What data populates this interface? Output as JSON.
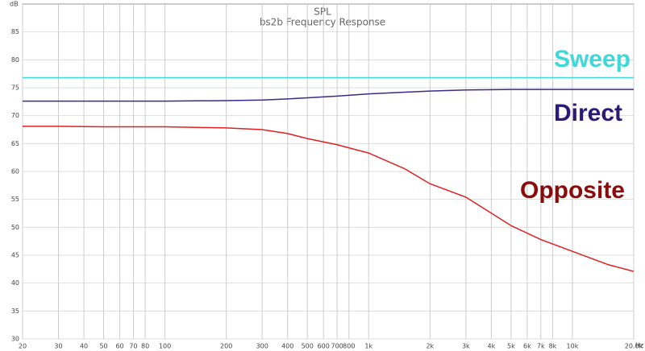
{
  "chart_data": {
    "type": "line",
    "title": "SPL",
    "subtitle": "bs2b Frequency Response",
    "ylabel": "dB",
    "xlabel": "Hz",
    "xscale": "log",
    "grid": true,
    "xlim": [
      20,
      20000
    ],
    "ylim": [
      30,
      90
    ],
    "yticks": [
      30,
      35,
      40,
      45,
      50,
      55,
      60,
      65,
      70,
      75,
      80,
      85
    ],
    "xticks": [
      20,
      30,
      40,
      50,
      60,
      70,
      80,
      100,
      200,
      300,
      400,
      500,
      600,
      700,
      800,
      {
        "value": 1000,
        "label": "1k"
      },
      {
        "value": 2000,
        "label": "2k"
      },
      {
        "value": 3000,
        "label": "3k"
      },
      {
        "value": 4000,
        "label": "4k"
      },
      {
        "value": 5000,
        "label": "5k"
      },
      {
        "value": 6000,
        "label": "6k"
      },
      {
        "value": 7000,
        "label": "7k"
      },
      {
        "value": 8000,
        "label": "8k"
      },
      {
        "value": 10000,
        "label": "10k"
      },
      {
        "value": 20000,
        "label": "20.0k"
      }
    ],
    "x": [
      20,
      30,
      50,
      100,
      200,
      300,
      400,
      500,
      700,
      1000,
      1500,
      2000,
      3000,
      5000,
      7000,
      10000,
      15000,
      20000
    ],
    "series": [
      {
        "name": "Sweep",
        "color": "#3fd8d8",
        "values": [
          76.8,
          76.8,
          76.8,
          76.8,
          76.8,
          76.8,
          76.8,
          76.8,
          76.8,
          76.8,
          76.8,
          76.8,
          76.8,
          76.8,
          76.8,
          76.8,
          76.8,
          76.8
        ]
      },
      {
        "name": "Direct",
        "color": "#3a2a88",
        "values": [
          72.6,
          72.6,
          72.6,
          72.6,
          72.7,
          72.8,
          73.0,
          73.2,
          73.5,
          73.9,
          74.2,
          74.4,
          74.6,
          74.7,
          74.7,
          74.7,
          74.7,
          74.7
        ]
      },
      {
        "name": "Opposite",
        "color": "#e02020",
        "values": [
          68.1,
          68.1,
          68.0,
          68.0,
          67.8,
          67.5,
          66.8,
          65.9,
          64.8,
          63.3,
          60.5,
          57.8,
          55.4,
          50.3,
          47.8,
          45.7,
          43.3,
          42.1
        ]
      }
    ]
  }
}
